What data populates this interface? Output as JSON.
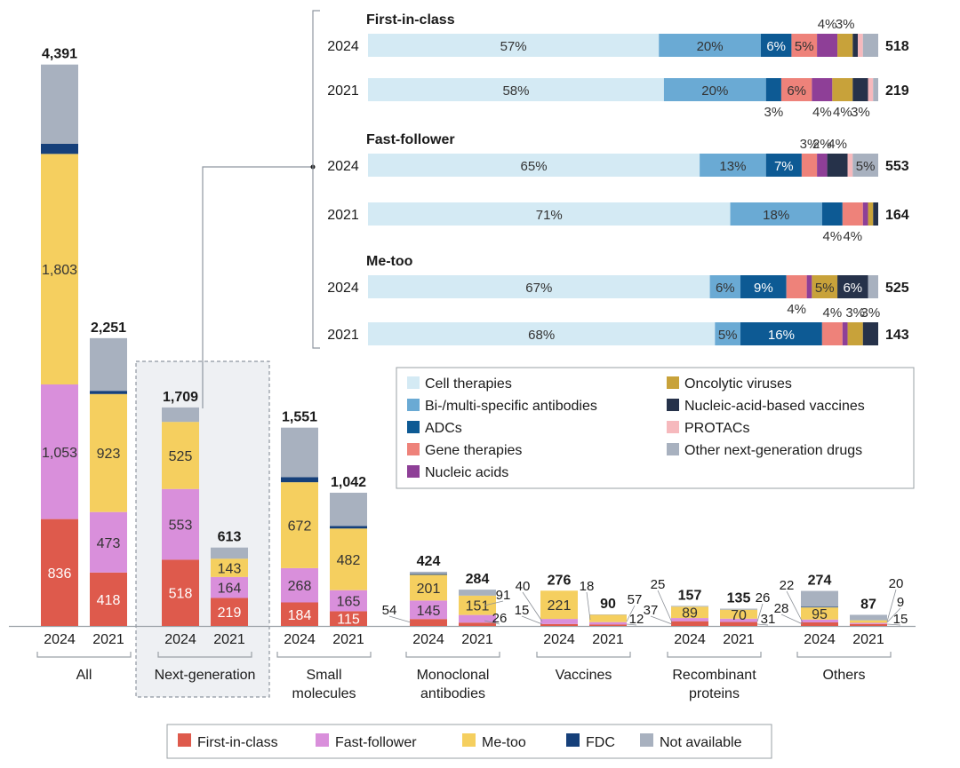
{
  "chart_data": [
    {
      "type": "bar",
      "subtype": "stacked",
      "colors": {
        "First-in-class": "#de5a4c",
        "Fast-follower": "#d98fdb",
        "Me-too": "#f5cf5f",
        "FDC": "#16407a",
        "Not available": "#a8b1bf"
      },
      "legend": [
        "First-in-class",
        "Fast-follower",
        "Me-too",
        "FDC",
        "Not available"
      ],
      "group_labels": [
        "All",
        "Next-generation",
        "Small molecules",
        "Monoclonal antibodies",
        "Vaccines",
        "Recombinant proteins",
        "Others"
      ],
      "groups": [
        {
          "name": "All",
          "bars": [
            {
              "year": "2024",
              "total": 4391,
              "total_label": "4,391",
              "values": [
                836,
                1053,
                1803,
                79,
                620
              ],
              "labels": [
                "836",
                "1,053",
                "1,803",
                "",
                ""
              ]
            },
            {
              "year": "2021",
              "total": 2251,
              "total_label": "2,251",
              "values": [
                418,
                473,
                923,
                25,
                412
              ],
              "labels": [
                "418",
                "473",
                "923",
                "",
                ""
              ]
            }
          ]
        },
        {
          "name": "Next-generation",
          "bars": [
            {
              "year": "2024",
              "total": 1709,
              "total_label": "1,709",
              "values": [
                518,
                553,
                525,
                0,
                113
              ],
              "labels": [
                "518",
                "553",
                "525",
                "",
                ""
              ]
            },
            {
              "year": "2021",
              "total": 613,
              "total_label": "613",
              "values": [
                219,
                164,
                143,
                0,
                87
              ],
              "labels": [
                "219",
                "164",
                "143",
                "",
                ""
              ]
            }
          ]
        },
        {
          "name": "Small molecules",
          "bars": [
            {
              "year": "2024",
              "total": 1551,
              "total_label": "1,551",
              "values": [
                184,
                268,
                672,
                40,
                387
              ],
              "labels": [
                "184",
                "268",
                "672",
                "",
                ""
              ]
            },
            {
              "year": "2021",
              "total": 1042,
              "total_label": "1,042",
              "values": [
                115,
                165,
                482,
                20,
                260
              ],
              "labels": [
                "115",
                "165",
                "482",
                "",
                ""
              ]
            }
          ]
        },
        {
          "name": "Monoclonal antibodies",
          "bars": [
            {
              "year": "2024",
              "total": 424,
              "total_label": "424",
              "values": [
                54,
                145,
                201,
                6,
                18
              ],
              "labels": [
                "",
                "145",
                "201",
                "",
                ""
              ]
            },
            {
              "year": "2021",
              "total": 284,
              "total_label": "284",
              "values": [
                26,
                60,
                151,
                0,
                47
              ],
              "labels": [
                "",
                "",
                "151",
                "",
                ""
              ]
            }
          ]
        },
        {
          "name": "Vaccines",
          "bars": [
            {
              "year": "2024",
              "total": 276,
              "total_label": "276",
              "values": [
                15,
                40,
                221,
                0,
                0
              ],
              "labels": [
                "",
                "",
                "221",
                "",
                ""
              ]
            },
            {
              "year": "2021",
              "total": 90,
              "total_label": "90",
              "values": [
                12,
                18,
                57,
                0,
                3
              ],
              "labels": [
                "",
                "",
                "",
                "",
                ""
              ]
            }
          ]
        },
        {
          "name": "Recombinant proteins",
          "bars": [
            {
              "year": "2024",
              "total": 157,
              "total_label": "157",
              "values": [
                37,
                25,
                89,
                0,
                6
              ],
              "labels": [
                "",
                "",
                "89",
                "",
                ""
              ]
            },
            {
              "year": "2021",
              "total": 135,
              "total_label": "135",
              "values": [
                31,
                26,
                70,
                0,
                8
              ],
              "labels": [
                "",
                "",
                "70",
                "",
                ""
              ]
            }
          ]
        },
        {
          "name": "Others",
          "bars": [
            {
              "year": "2024",
              "total": 274,
              "total_label": "274",
              "values": [
                28,
                22,
                95,
                5,
                124
              ],
              "labels": [
                "",
                "",
                "95",
                "",
                ""
              ]
            },
            {
              "year": "2021",
              "total": 87,
              "total_label": "87",
              "values": [
                15,
                9,
                20,
                0,
                43
              ],
              "labels": [
                "",
                "",
                "",
                "",
                ""
              ]
            }
          ]
        }
      ],
      "side_labels": [
        "54",
        "91",
        "26",
        "40",
        "15",
        "18",
        "57",
        "12",
        "25",
        "37",
        "26",
        "31",
        "22",
        "28",
        "20",
        "9",
        "15"
      ]
    },
    {
      "type": "bar",
      "subtype": "horizontal-stacked-percent",
      "categories": [
        "Cell therapies",
        "Bi-/multi-specific antibodies",
        "ADCs",
        "Gene therapies",
        "Nucleic acids",
        "Oncolytic viruses",
        "Nucleic-acid-based vaccines",
        "PROTACs",
        "Other next-generation drugs"
      ],
      "colors": [
        "#d4eaf4",
        "#6aaad4",
        "#0d5a94",
        "#ee827a",
        "#8e3f97",
        "#c8a23a",
        "#26324a",
        "#f6b9bd",
        "#a8b1bf"
      ],
      "sections": [
        {
          "title": "First-in-class",
          "rows": [
            {
              "year": "2024",
              "total": "518",
              "values": [
                57,
                20,
                6,
                5,
                4,
                3,
                1,
                1,
                3
              ],
              "labels": [
                "57%",
                "20%",
                "6%",
                "5%",
                "4%",
                "3%",
                "",
                "",
                ""
              ]
            },
            {
              "year": "2021",
              "total": "219",
              "values": [
                58,
                20,
                3,
                6,
                4,
                4,
                3,
                1,
                1
              ],
              "labels": [
                "58%",
                "20%",
                "3%",
                "6%",
                "4%",
                "4%",
                "3%",
                "",
                ""
              ]
            }
          ]
        },
        {
          "title": "Fast-follower",
          "rows": [
            {
              "year": "2024",
              "total": "553",
              "values": [
                65,
                13,
                7,
                3,
                2,
                0,
                4,
                1,
                5
              ],
              "labels": [
                "65%",
                "13%",
                "7%",
                "3%",
                "2%",
                "",
                "4%",
                "",
                "5%"
              ]
            },
            {
              "year": "2021",
              "total": "164",
              "values": [
                71,
                18,
                4,
                4,
                1,
                1,
                1,
                0,
                0
              ],
              "labels": [
                "71%",
                "18%",
                "4%",
                "4%",
                "",
                "",
                "",
                "",
                ""
              ]
            }
          ]
        },
        {
          "title": "Me-too",
          "rows": [
            {
              "year": "2024",
              "total": "525",
              "values": [
                67,
                6,
                9,
                4,
                1,
                5,
                6,
                0,
                2
              ],
              "labels": [
                "67%",
                "6%",
                "9%",
                "4%",
                "",
                "5%",
                "6%",
                "",
                ""
              ]
            },
            {
              "year": "2021",
              "total": "143",
              "values": [
                68,
                5,
                16,
                4,
                1,
                3,
                3,
                0,
                0
              ],
              "labels": [
                "68%",
                "5%",
                "16%",
                "4%",
                "",
                "3%",
                "3%",
                "",
                ""
              ]
            }
          ]
        }
      ]
    }
  ]
}
